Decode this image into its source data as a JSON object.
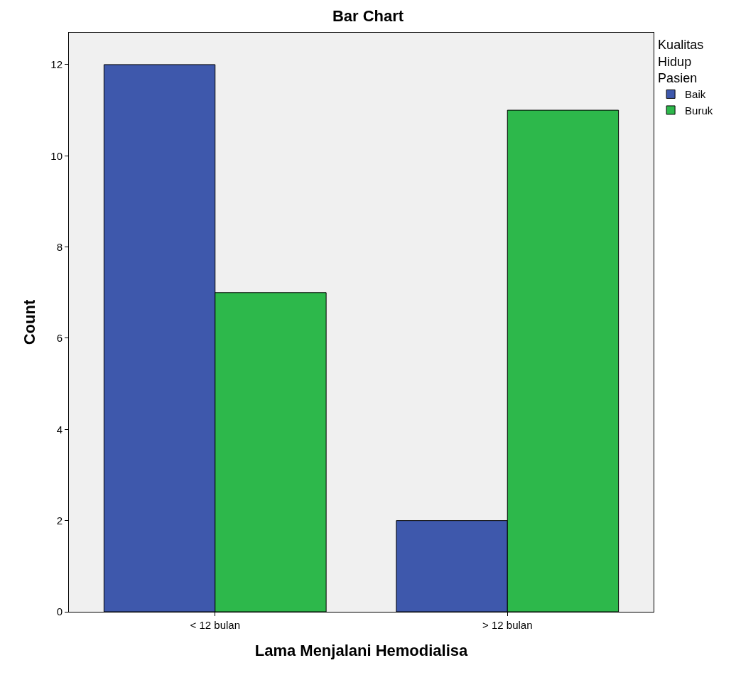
{
  "chart_data": {
    "type": "bar",
    "title": "Bar Chart",
    "xlabel": "Lama Menjalani Hemodialisa",
    "ylabel": "Count",
    "legend_title": "Kualitas Hidup Pasien",
    "categories": [
      "< 12 bulan",
      "> 12 bulan"
    ],
    "series": [
      {
        "name": "Baik",
        "color": "#3e58ac",
        "values": [
          12,
          2
        ]
      },
      {
        "name": "Buruk",
        "color": "#2db84b",
        "values": [
          7,
          11
        ]
      }
    ],
    "ylim": [
      0,
      12.7
    ],
    "yticks": [
      0,
      2,
      4,
      6,
      8,
      10,
      12
    ],
    "grid": false,
    "legend": "top right"
  }
}
